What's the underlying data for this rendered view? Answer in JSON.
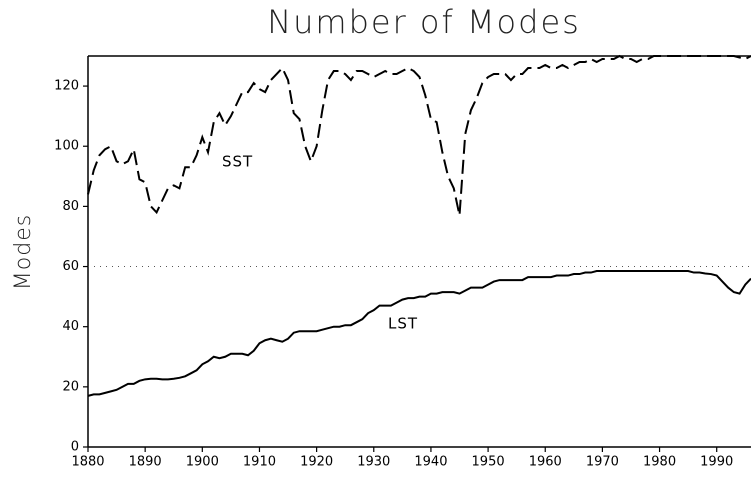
{
  "chart_data": {
    "type": "line",
    "title": "Number of Modes",
    "y_label": "Modes",
    "x": [
      1880,
      1881,
      1882,
      1883,
      1884,
      1885,
      1886,
      1887,
      1888,
      1889,
      1890,
      1891,
      1892,
      1893,
      1894,
      1895,
      1896,
      1897,
      1898,
      1899,
      1900,
      1901,
      1902,
      1903,
      1904,
      1905,
      1906,
      1907,
      1908,
      1909,
      1910,
      1911,
      1912,
      1913,
      1914,
      1915,
      1916,
      1917,
      1918,
      1919,
      1920,
      1921,
      1922,
      1923,
      1924,
      1925,
      1926,
      1927,
      1928,
      1929,
      1930,
      1931,
      1932,
      1933,
      1934,
      1935,
      1936,
      1937,
      1938,
      1939,
      1940,
      1941,
      1942,
      1943,
      1944,
      1945,
      1946,
      1947,
      1948,
      1949,
      1950,
      1951,
      1952,
      1953,
      1954,
      1955,
      1956,
      1957,
      1958,
      1959,
      1960,
      1961,
      1962,
      1963,
      1964,
      1965,
      1966,
      1967,
      1968,
      1969,
      1970,
      1971,
      1972,
      1973,
      1974,
      1975,
      1976,
      1977,
      1978,
      1979,
      1980,
      1981,
      1982,
      1983,
      1984,
      1985,
      1986,
      1987,
      1988,
      1989,
      1990,
      1991,
      1992,
      1993,
      1994,
      1995,
      1996
    ],
    "series": [
      {
        "name": "SST",
        "color": "#000000",
        "style": "dashed",
        "values": [
          84,
          92,
          97,
          99,
          100,
          95,
          94,
          95,
          99,
          89,
          88,
          80,
          78,
          82,
          86,
          87,
          86,
          93,
          93,
          97,
          103,
          98,
          108,
          111,
          107,
          110,
          114,
          118,
          118,
          121,
          119,
          118,
          122,
          124,
          126,
          122,
          111,
          109,
          100,
          95,
          100,
          112,
          122,
          125,
          125,
          124,
          122,
          125,
          125,
          124,
          123,
          124,
          125,
          124,
          124,
          125,
          126,
          125,
          123,
          117,
          109,
          108,
          98,
          90,
          86,
          77,
          104,
          112,
          116,
          121,
          123,
          124,
          124,
          124,
          122,
          124,
          124,
          126,
          126,
          126,
          127,
          126,
          126,
          127,
          126,
          127,
          128,
          128,
          129,
          128,
          129,
          129,
          129,
          130,
          129,
          129,
          128,
          129,
          129,
          130,
          130,
          130,
          130,
          130,
          130,
          130,
          130,
          130,
          130,
          130,
          130,
          130,
          130,
          130,
          129.5,
          129,
          130
        ]
      },
      {
        "name": "LST",
        "color": "#000000",
        "style": "solid",
        "values": [
          17,
          17.5,
          17.5,
          18,
          18.5,
          19,
          20,
          21,
          21,
          22,
          22.5,
          22.7,
          22.7,
          22.5,
          22.5,
          22.7,
          23,
          23.5,
          24.5,
          25.5,
          27.5,
          28.5,
          30,
          29.5,
          30,
          31,
          31,
          31,
          30.5,
          32,
          34.5,
          35.5,
          36,
          35.5,
          35,
          36,
          38,
          38.5,
          38.5,
          38.5,
          38.5,
          39,
          39.5,
          40,
          40,
          40.5,
          40.5,
          41.5,
          42.5,
          44.5,
          45.5,
          47,
          47,
          47,
          48,
          49,
          49.5,
          49.5,
          50,
          50,
          51,
          51,
          51.5,
          51.5,
          51.5,
          51,
          52,
          53,
          53,
          53,
          54,
          55,
          55.5,
          55.5,
          55.5,
          55.5,
          55.5,
          56.5,
          56.5,
          56.5,
          56.5,
          56.5,
          57,
          57,
          57,
          57.5,
          57.5,
          58,
          58,
          58.5,
          58.5,
          58.5,
          58.5,
          58.5,
          58.5,
          58.5,
          58.5,
          58.5,
          58.5,
          58.5,
          58.5,
          58.5,
          58.5,
          58.5,
          58.5,
          58.5,
          58,
          58,
          57.7,
          57.5,
          57,
          55,
          53,
          51.5,
          51,
          54,
          56
        ]
      }
    ],
    "hline": 60,
    "xlim": [
      1880,
      1996
    ],
    "ylim": [
      0,
      130
    ],
    "xticks": [
      1880,
      1890,
      1900,
      1910,
      1920,
      1930,
      1940,
      1950,
      1960,
      1970,
      1980,
      1990
    ],
    "yticks": [
      0,
      20,
      40,
      60,
      80,
      100,
      120
    ]
  }
}
